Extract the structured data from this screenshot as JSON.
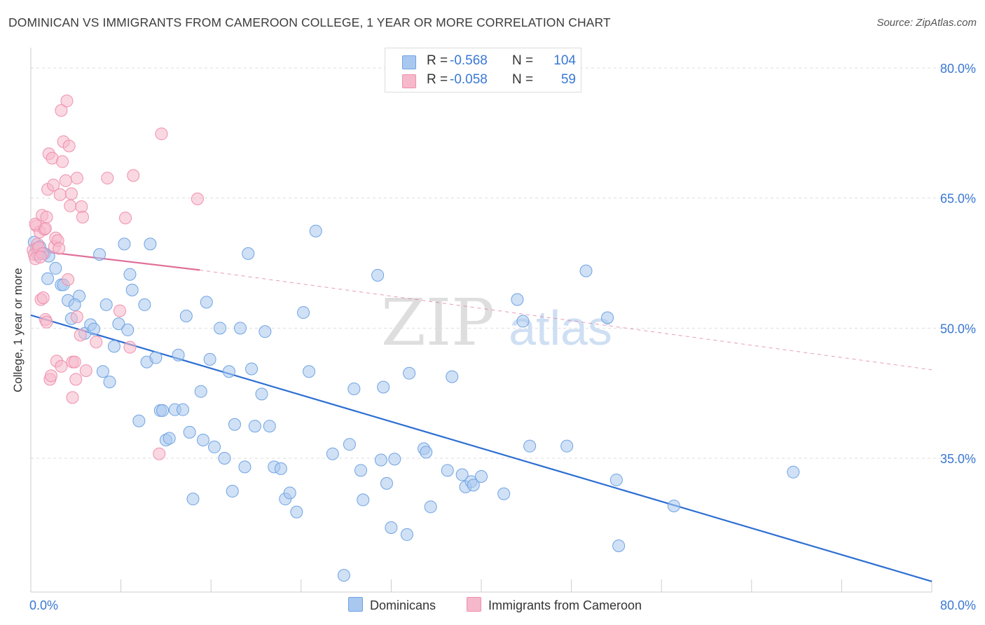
{
  "title": "DOMINICAN VS IMMIGRANTS FROM CAMEROON COLLEGE, 1 YEAR OR MORE CORRELATION CHART",
  "source": "Source: ZipAtlas.com",
  "watermark": {
    "zip": "ZIP",
    "atlas": "atlas"
  },
  "stats": {
    "rows": [
      {
        "r_label": "R =",
        "r_value": "-0.568",
        "n_label": "N =",
        "n_value": "104",
        "color": "#a9c8ef"
      },
      {
        "r_label": "R =",
        "r_value": "-0.058",
        "n_label": "N =",
        "n_value": "59",
        "color": "#f6b8cb"
      }
    ]
  },
  "legend": {
    "items": [
      {
        "label": "Dominicans",
        "color": "#a9c8ef"
      },
      {
        "label": "Immigrants from Cameroon",
        "color": "#f6b8cb"
      }
    ]
  },
  "chart_data": {
    "type": "scatter",
    "xlabel": "",
    "ylabel": "College, 1 year or more",
    "xlim": [
      0,
      80
    ],
    "ylim": [
      20,
      83
    ],
    "x_tick_labels": [
      "0.0%",
      "80.0%"
    ],
    "y_tick_labels": [
      "35.0%",
      "50.0%",
      "65.0%",
      "80.0%"
    ],
    "y_ticks": [
      35,
      50,
      65,
      80
    ],
    "grid": "horizontal dashed",
    "legend_position": "bottom",
    "series": [
      {
        "name": "Dominicans",
        "color": "#6fa3e3",
        "fill": "#a9c8ef",
        "trend": {
          "x": [
            0,
            80
          ],
          "y": [
            51.5,
            20.8
          ],
          "style": "solid",
          "color": "#2d6fd2"
        },
        "points": [
          [
            0.3,
            59.9
          ],
          [
            0.5,
            59.2
          ],
          [
            0.6,
            58.5
          ],
          [
            0.8,
            59.4
          ],
          [
            1.0,
            58.6
          ],
          [
            1.2,
            58.6
          ],
          [
            1.6,
            58.3
          ],
          [
            1.5,
            55.7
          ],
          [
            2.2,
            56.9
          ],
          [
            2.7,
            55.0
          ],
          [
            3.3,
            53.2
          ],
          [
            2.9,
            55.0
          ],
          [
            4.3,
            53.7
          ],
          [
            3.9,
            52.7
          ],
          [
            3.6,
            51.1
          ],
          [
            4.8,
            49.4
          ],
          [
            5.3,
            50.4
          ],
          [
            5.6,
            49.9
          ],
          [
            6.1,
            58.5
          ],
          [
            6.4,
            45.0
          ],
          [
            6.7,
            52.7
          ],
          [
            7.0,
            43.8
          ],
          [
            7.4,
            47.9
          ],
          [
            7.8,
            50.5
          ],
          [
            8.3,
            59.7
          ],
          [
            8.6,
            49.8
          ],
          [
            8.8,
            56.2
          ],
          [
            9.0,
            54.4
          ],
          [
            9.6,
            39.3
          ],
          [
            10.1,
            52.7
          ],
          [
            10.3,
            46.1
          ],
          [
            10.6,
            59.7
          ],
          [
            11.1,
            46.6
          ],
          [
            11.5,
            40.5
          ],
          [
            11.7,
            40.5
          ],
          [
            12.0,
            37.1
          ],
          [
            12.3,
            37.3
          ],
          [
            12.8,
            40.6
          ],
          [
            13.1,
            46.9
          ],
          [
            13.5,
            40.6
          ],
          [
            13.8,
            51.4
          ],
          [
            14.1,
            38.0
          ],
          [
            14.4,
            30.3
          ],
          [
            15.1,
            42.7
          ],
          [
            15.3,
            37.1
          ],
          [
            15.6,
            53.0
          ],
          [
            15.9,
            46.4
          ],
          [
            16.3,
            36.3
          ],
          [
            16.8,
            50.0
          ],
          [
            17.2,
            35.0
          ],
          [
            17.6,
            45.0
          ],
          [
            17.9,
            31.2
          ],
          [
            18.1,
            38.9
          ],
          [
            18.6,
            50.0
          ],
          [
            19.0,
            34.0
          ],
          [
            19.3,
            58.6
          ],
          [
            19.6,
            45.3
          ],
          [
            19.9,
            38.7
          ],
          [
            20.5,
            42.4
          ],
          [
            20.8,
            49.6
          ],
          [
            21.2,
            38.7
          ],
          [
            21.6,
            34.0
          ],
          [
            22.2,
            33.8
          ],
          [
            22.6,
            30.3
          ],
          [
            23.0,
            31.0
          ],
          [
            23.6,
            28.8
          ],
          [
            24.2,
            51.8
          ],
          [
            24.7,
            45.0
          ],
          [
            25.3,
            61.2
          ],
          [
            26.8,
            35.5
          ],
          [
            27.8,
            21.5
          ],
          [
            28.3,
            36.6
          ],
          [
            28.7,
            43.0
          ],
          [
            29.3,
            33.6
          ],
          [
            29.5,
            30.2
          ],
          [
            30.8,
            56.1
          ],
          [
            31.1,
            34.8
          ],
          [
            31.3,
            43.2
          ],
          [
            31.6,
            32.1
          ],
          [
            32.0,
            27.0
          ],
          [
            32.3,
            34.9
          ],
          [
            33.6,
            44.8
          ],
          [
            33.4,
            26.2
          ],
          [
            34.9,
            36.1
          ],
          [
            35.1,
            35.7
          ],
          [
            35.5,
            29.4
          ],
          [
            37.0,
            33.6
          ],
          [
            37.4,
            44.4
          ],
          [
            38.3,
            33.1
          ],
          [
            38.6,
            31.7
          ],
          [
            39.1,
            32.3
          ],
          [
            39.3,
            31.9
          ],
          [
            40.0,
            32.9
          ],
          [
            42.0,
            30.9
          ],
          [
            43.2,
            53.3
          ],
          [
            43.7,
            50.8
          ],
          [
            44.3,
            36.4
          ],
          [
            47.6,
            36.4
          ],
          [
            49.3,
            56.6
          ],
          [
            51.2,
            51.2
          ],
          [
            52.0,
            32.5
          ],
          [
            52.2,
            24.9
          ],
          [
            57.1,
            29.5
          ],
          [
            67.7,
            33.4
          ]
        ]
      },
      {
        "name": "Immigrants from Cameroon",
        "color": "#ef8fae",
        "fill": "#f6b8cb",
        "trend": {
          "x": [
            0,
            15
          ],
          "y": [
            59.0,
            56.7
          ],
          "style": "solid",
          "color": "#e07099",
          "extension": {
            "x": [
              15,
              80
            ],
            "y": [
              56.7,
              45.2
            ],
            "style": "dashed"
          }
        },
        "points": [
          [
            0.2,
            59.0
          ],
          [
            0.3,
            58.5
          ],
          [
            0.4,
            58.0
          ],
          [
            0.5,
            61.8
          ],
          [
            0.6,
            59.7
          ],
          [
            0.7,
            59.3
          ],
          [
            0.8,
            61.1
          ],
          [
            0.9,
            53.3
          ],
          [
            1.0,
            63.0
          ],
          [
            1.1,
            53.5
          ],
          [
            1.2,
            61.4
          ],
          [
            1.3,
            51.0
          ],
          [
            1.4,
            62.8
          ],
          [
            1.4,
            50.7
          ],
          [
            1.5,
            66.0
          ],
          [
            1.6,
            70.1
          ],
          [
            1.7,
            44.1
          ],
          [
            1.8,
            44.5
          ],
          [
            1.9,
            69.6
          ],
          [
            2.0,
            66.5
          ],
          [
            2.1,
            59.4
          ],
          [
            2.2,
            60.4
          ],
          [
            2.3,
            46.2
          ],
          [
            2.4,
            60.1
          ],
          [
            2.6,
            65.4
          ],
          [
            2.7,
            45.6
          ],
          [
            2.7,
            75.1
          ],
          [
            2.8,
            69.2
          ],
          [
            2.9,
            71.5
          ],
          [
            3.1,
            67.0
          ],
          [
            3.2,
            76.2
          ],
          [
            3.4,
            71.0
          ],
          [
            3.5,
            64.1
          ],
          [
            3.6,
            65.5
          ],
          [
            3.7,
            42.0
          ],
          [
            3.7,
            46.1
          ],
          [
            3.9,
            46.1
          ],
          [
            4.0,
            44.1
          ],
          [
            4.1,
            67.3
          ],
          [
            4.1,
            51.3
          ],
          [
            4.4,
            49.2
          ],
          [
            4.5,
            64.0
          ],
          [
            4.6,
            62.8
          ],
          [
            4.9,
            45.1
          ],
          [
            5.8,
            48.4
          ],
          [
            6.8,
            67.3
          ],
          [
            7.9,
            52.0
          ],
          [
            8.4,
            62.7
          ],
          [
            8.8,
            47.8
          ],
          [
            9.1,
            67.6
          ],
          [
            11.4,
            35.5
          ],
          [
            11.6,
            72.4
          ],
          [
            14.8,
            64.9
          ],
          [
            1.05,
            58.6
          ],
          [
            0.85,
            58.2
          ],
          [
            1.3,
            61.5
          ],
          [
            2.5,
            59.2
          ],
          [
            0.4,
            62.0
          ],
          [
            3.3,
            55.6
          ]
        ]
      }
    ]
  }
}
